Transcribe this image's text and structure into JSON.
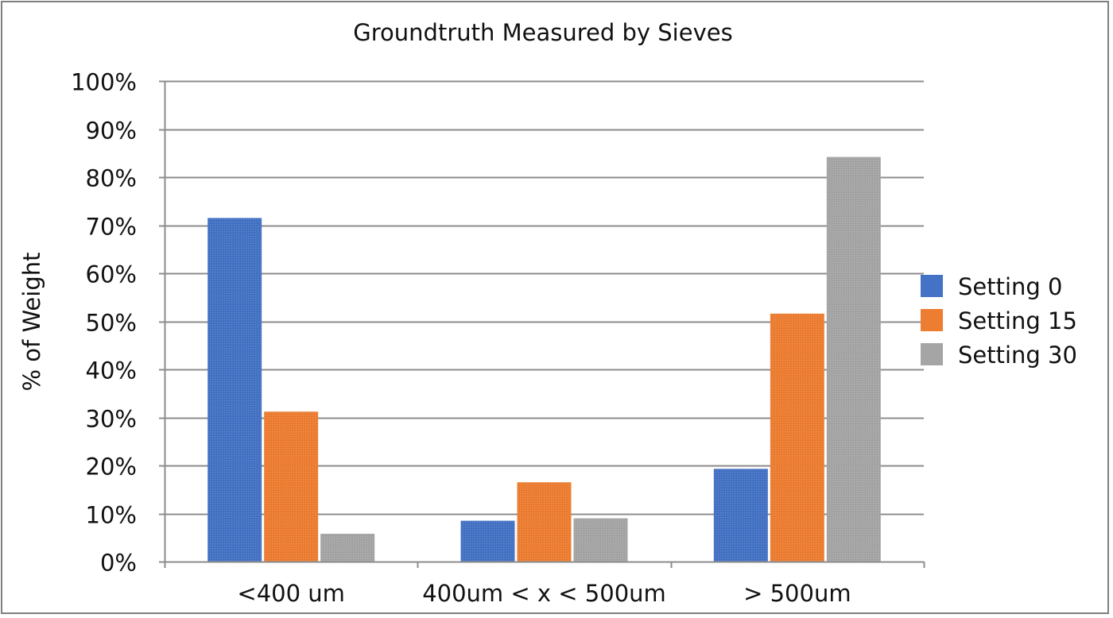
{
  "chart_data": {
    "type": "bar",
    "title": "Groundtruth Measured by Sieves",
    "xlabel": "",
    "ylabel": "% of Weight",
    "categories": [
      "<400 um",
      "400um < x < 500um",
      "> 500um"
    ],
    "series": [
      {
        "name": "Setting 0",
        "values": [
          71.5,
          8.5,
          19.3
        ],
        "color": "#4472C4"
      },
      {
        "name": "Setting 15",
        "values": [
          31.2,
          16.5,
          51.6
        ],
        "color": "#ED7D31"
      },
      {
        "name": "Setting 30",
        "values": [
          5.8,
          9.0,
          84.2
        ],
        "color": "#A5A5A5"
      }
    ],
    "ylim": [
      0,
      100
    ],
    "yticks": [
      "0%",
      "10%",
      "20%",
      "30%",
      "40%",
      "50%",
      "60%",
      "70%",
      "80%",
      "90%",
      "100%"
    ],
    "grid": true,
    "legend_position": "right",
    "frame_color": "#7f7f7f",
    "grid_color": "#8c8c8c"
  }
}
